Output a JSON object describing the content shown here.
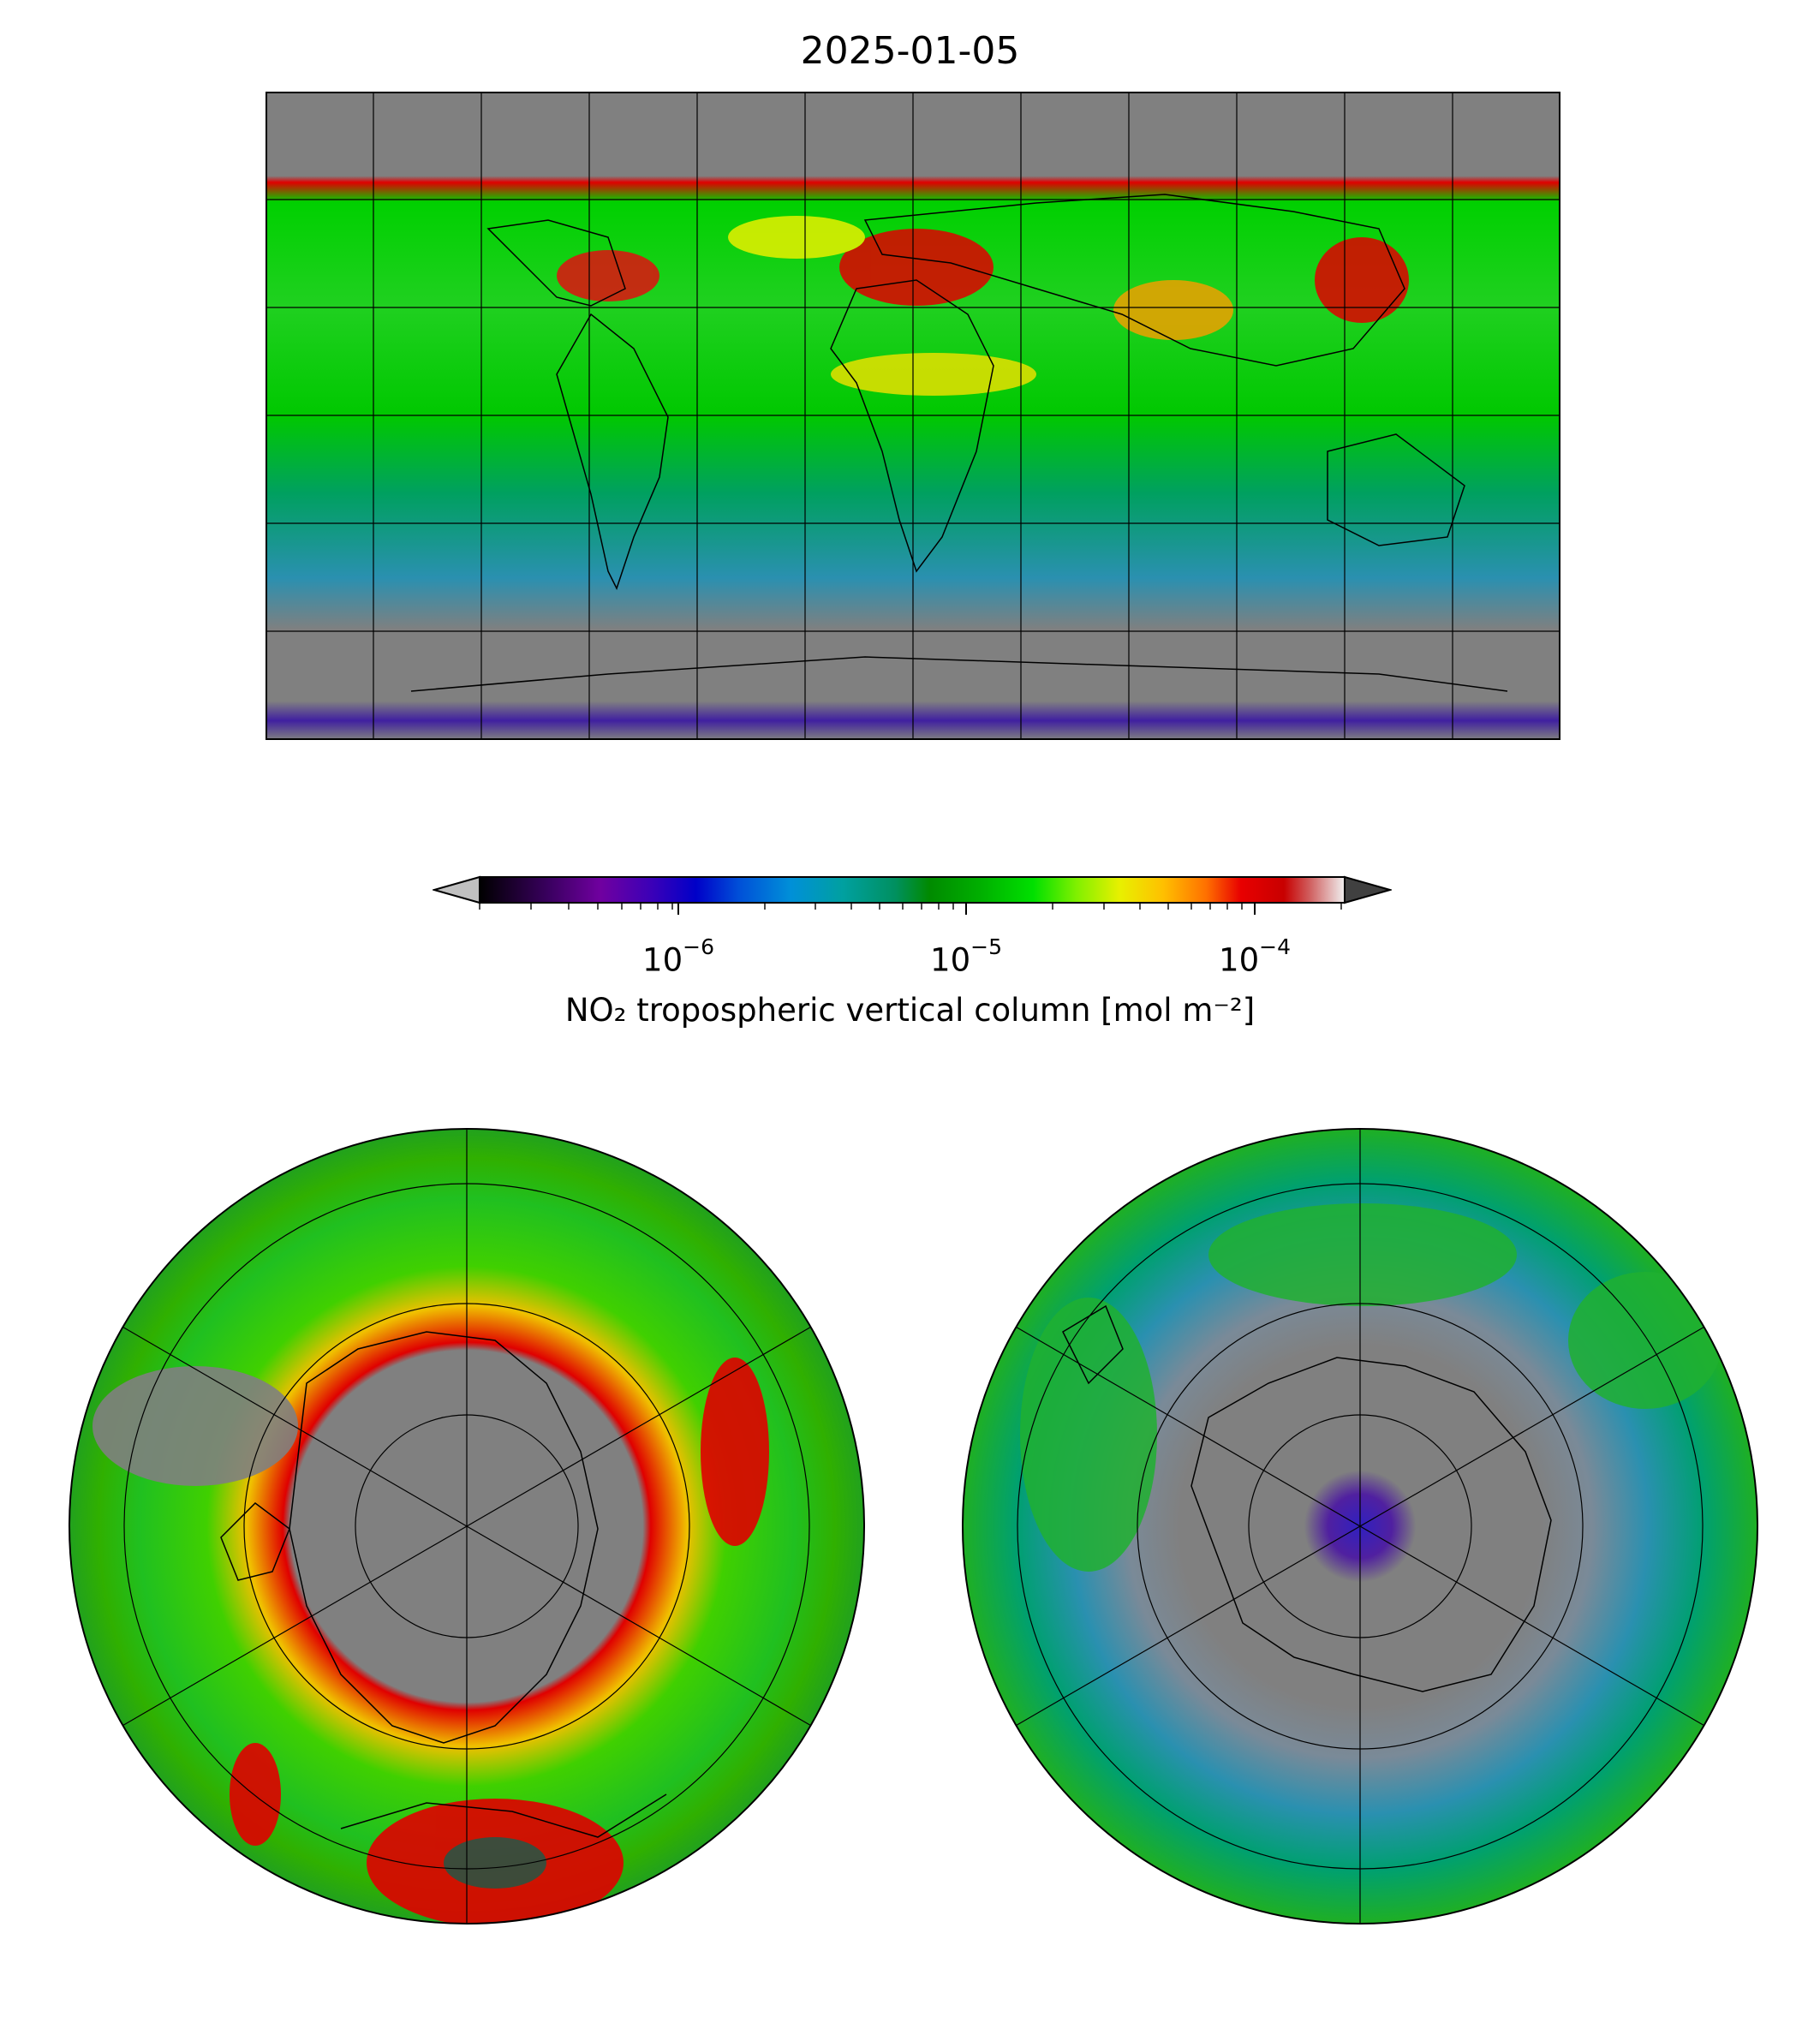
{
  "title": "2025-01-05",
  "colorbar": {
    "label": "NO₂ tropospheric vertical column [mol m⁻²]",
    "scale": "log",
    "range": [
      2e-07,
      0.0002
    ],
    "extend": "both",
    "ticks": [
      {
        "value": 1e-06,
        "base": "10",
        "exp": "−6"
      },
      {
        "value": 1e-05,
        "base": "10",
        "exp": "−5"
      },
      {
        "value": 0.0001,
        "base": "10",
        "exp": "−4"
      }
    ],
    "colors": [
      "#000000",
      "#3a0060",
      "#7000a0",
      "#3a00b8",
      "#0000c8",
      "#0050d8",
      "#0090d8",
      "#00a0a0",
      "#009060",
      "#008a00",
      "#00b000",
      "#00e000",
      "#80f000",
      "#e8f000",
      "#ffc000",
      "#ff7000",
      "#e80000",
      "#c80000",
      "#d06060",
      "#f0f0f0"
    ],
    "under_color": "#c0c0c0",
    "over_color": "#404040"
  },
  "maps": {
    "world": {
      "projection": "plate-carree",
      "gridlines": true,
      "nodata_color": "#808080"
    },
    "north_polar": {
      "projection": "north-polar-stereographic",
      "gridlines": true
    },
    "south_polar": {
      "projection": "south-polar-stereographic",
      "gridlines": true
    }
  }
}
